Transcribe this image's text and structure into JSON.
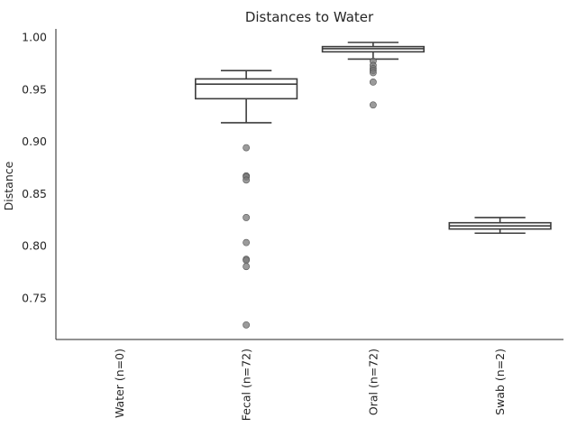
{
  "chart_data": {
    "type": "box",
    "title": "Distances to Water",
    "ylabel": "Distance",
    "xlabel": "",
    "ylim": [
      0.71,
      1.008
    ],
    "yticks": [
      0.75,
      0.8,
      0.85,
      0.9,
      0.95,
      1.0
    ],
    "ytick_labels": [
      "0.75",
      "0.80",
      "0.85",
      "0.90",
      "0.95",
      "1.00"
    ],
    "grid": false,
    "categories": [
      "Water (n=0)",
      "Fecal (n=72)",
      "Oral (n=72)",
      "Swab (n=2)"
    ],
    "boxes": [
      {
        "category": "Water (n=0)",
        "empty": true
      },
      {
        "category": "Fecal (n=72)",
        "whisker_low": 0.918,
        "q1": 0.941,
        "median": 0.955,
        "q3": 0.96,
        "whisker_high": 0.968,
        "fliers": [
          0.894,
          0.867,
          0.866,
          0.863,
          0.827,
          0.803,
          0.787,
          0.786,
          0.78,
          0.724
        ]
      },
      {
        "category": "Oral (n=72)",
        "whisker_low": 0.979,
        "q1": 0.986,
        "median": 0.989,
        "q3": 0.991,
        "whisker_high": 0.995,
        "fliers": [
          0.977,
          0.973,
          0.97,
          0.968,
          0.966,
          0.957,
          0.935
        ]
      },
      {
        "category": "Swab (n=2)",
        "whisker_low": 0.812,
        "q1": 0.816,
        "median": 0.819,
        "q3": 0.822,
        "whisker_high": 0.827,
        "fliers": []
      }
    ],
    "colors": {
      "box_edge": "#3d3d3d",
      "flier": "#7a7a7a"
    }
  }
}
